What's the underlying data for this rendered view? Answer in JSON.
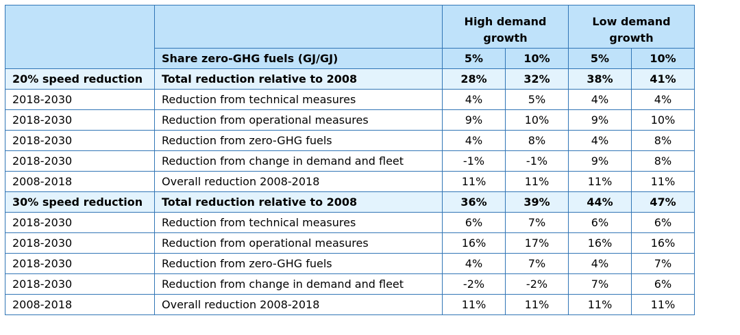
{
  "header": {
    "group_high": "High demand growth",
    "group_low": "Low demand growth",
    "share_label": "Share zero-GHG fuels (GJ/GJ)",
    "sub_cols": [
      "5%",
      "10%",
      "5%",
      "10%"
    ]
  },
  "sections": [
    {
      "scenario": "20% speed reduction",
      "total_label": "Total reduction relative to 2008",
      "total_values": [
        "28%",
        "32%",
        "38%",
        "41%"
      ],
      "rows": [
        {
          "period": "2018-2030",
          "label": "Reduction from technical measures",
          "values": [
            "4%",
            "5%",
            "4%",
            "4%"
          ]
        },
        {
          "period": "2018-2030",
          "label": "Reduction from operational measures",
          "values": [
            "9%",
            "10%",
            "9%",
            "10%"
          ]
        },
        {
          "period": "2018-2030",
          "label": "Reduction from zero-GHG fuels",
          "values": [
            "4%",
            "8%",
            "4%",
            "8%"
          ]
        },
        {
          "period": "2018-2030",
          "label": "Reduction from change in demand and fleet",
          "values": [
            "-1%",
            "-1%",
            "9%",
            "8%"
          ]
        },
        {
          "period": "2008-2018",
          "label": "Overall reduction 2008-2018",
          "values": [
            "11%",
            "11%",
            "11%",
            "11%"
          ]
        }
      ]
    },
    {
      "scenario": "30% speed reduction",
      "total_label": "Total reduction relative to 2008",
      "total_values": [
        "36%",
        "39%",
        "44%",
        "47%"
      ],
      "rows": [
        {
          "period": "2018-2030",
          "label": "Reduction from technical measures",
          "values": [
            "6%",
            "7%",
            "6%",
            "6%"
          ]
        },
        {
          "period": "2018-2030",
          "label": "Reduction from operational measures",
          "values": [
            "16%",
            "17%",
            "16%",
            "16%"
          ]
        },
        {
          "period": "2018-2030",
          "label": "Reduction from zero-GHG fuels",
          "values": [
            "4%",
            "7%",
            "4%",
            "7%"
          ]
        },
        {
          "period": "2018-2030",
          "label": "Reduction from change in demand and fleet",
          "values": [
            "-2%",
            "-2%",
            "7%",
            "6%"
          ]
        },
        {
          "period": "2008-2018",
          "label": "Overall reduction 2008-2018",
          "values": [
            "11%",
            "11%",
            "11%",
            "11%"
          ]
        }
      ]
    }
  ],
  "colors": {
    "header_bg": "#bfe2fa",
    "total_row_bg": "#e3f3fd",
    "border": "#2f74b5"
  }
}
